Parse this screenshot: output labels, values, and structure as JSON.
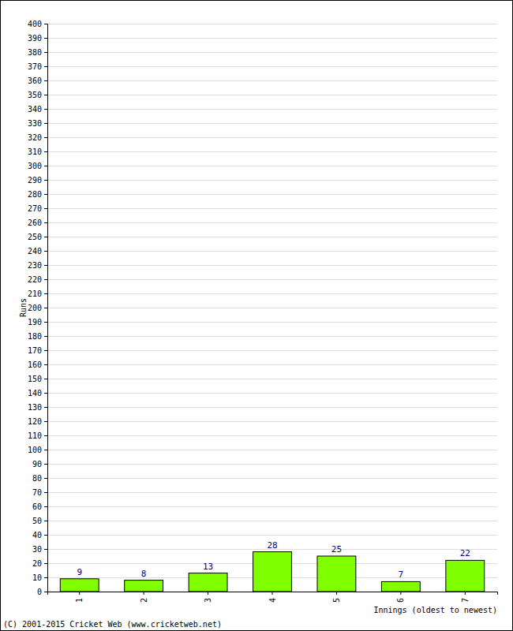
{
  "chart_data": {
    "type": "bar",
    "categories": [
      "1",
      "2",
      "3",
      "4",
      "5",
      "6",
      "7"
    ],
    "values": [
      9,
      8,
      13,
      28,
      25,
      7,
      22
    ],
    "color": "#80ff00",
    "ylim": [
      0,
      400
    ],
    "yticks": [
      0,
      10,
      20,
      30,
      40,
      50,
      60,
      70,
      80,
      90,
      100,
      110,
      120,
      130,
      140,
      150,
      160,
      170,
      180,
      190,
      200,
      210,
      220,
      230,
      240,
      250,
      260,
      270,
      280,
      290,
      300,
      310,
      320,
      330,
      340,
      350,
      360,
      370,
      380,
      390,
      400
    ],
    "grid": true,
    "data_labels": true,
    "y_label": "Runs",
    "x_label": "Innings (oldest to newest)",
    "annotations": [
      "(C) 2001-2015 Cricket Web (www.cricketweb.net)"
    ]
  }
}
